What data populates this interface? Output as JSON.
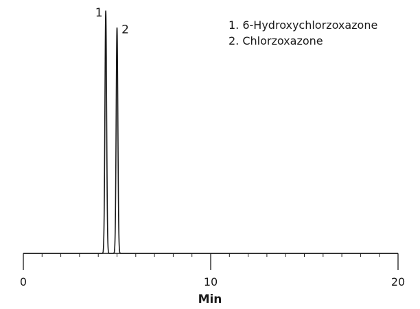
{
  "chart_data": {
    "type": "line",
    "title": "",
    "xlabel": "Min",
    "ylabel": "",
    "xlim": [
      0,
      20
    ],
    "ylim": [
      0,
      1
    ],
    "grid": false,
    "major_ticks": [
      {
        "value": 0,
        "label": "0"
      },
      {
        "value": 10,
        "label": "10"
      },
      {
        "value": 20,
        "label": "20"
      }
    ],
    "minor_tick_step": 1,
    "peaks": [
      {
        "label": "1",
        "rt": 4.4,
        "height": 1.0,
        "width": 0.045
      },
      {
        "label": "2",
        "rt": 5.0,
        "height": 0.93,
        "width": 0.045
      }
    ],
    "legend_position": "top-right",
    "legend": [
      "1. 6-Hydroxychlorzoxazone",
      "2. Chlorzoxazone"
    ],
    "line_color": "#1a1a1a"
  }
}
